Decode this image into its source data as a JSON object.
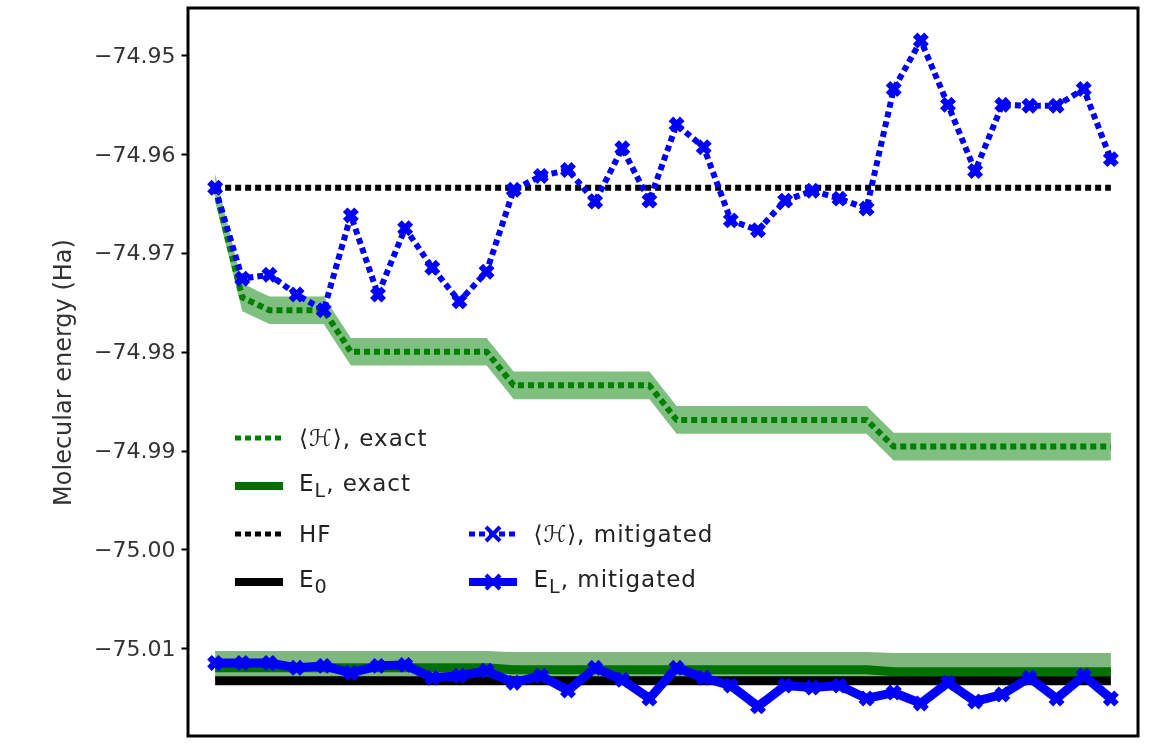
{
  "chart_data": {
    "type": "line",
    "ylabel": "Molecular energy (Ha)",
    "categories": [
      null,
      null,
      null,
      null,
      null,
      null,
      null,
      null,
      null,
      null,
      null,
      null,
      null,
      null,
      null,
      null,
      null,
      null,
      null,
      null,
      null,
      null,
      null,
      null,
      null,
      null,
      null,
      null,
      null,
      null,
      null,
      null,
      null,
      null
    ],
    "ylim": [
      -75.0189,
      -74.9452
    ],
    "yticks": [
      {
        "value": -74.95,
        "label": "−74.95"
      },
      {
        "value": -74.96,
        "label": "−74.96"
      },
      {
        "value": -74.97,
        "label": "−74.97"
      },
      {
        "value": -74.98,
        "label": "−74.98"
      },
      {
        "value": -74.99,
        "label": "−74.99"
      },
      {
        "value": -75.0,
        "label": "−75.00"
      },
      {
        "value": -75.01,
        "label": "−75.01"
      }
    ],
    "tick_labels": "y",
    "legend": "bottom left",
    "series": [
      {
        "name": "⟨ℋ⟩, exact",
        "color": "#008000",
        "line_style": "dotted",
        "marker": "none",
        "values": [
          -74.9634,
          -74.9745,
          -74.9758,
          -74.9758,
          -74.9758,
          -74.98,
          -74.98,
          -74.98,
          -74.98,
          -74.98,
          -74.98,
          -74.9834,
          -74.9834,
          -74.9834,
          -74.9834,
          -74.9834,
          -74.9834,
          -74.9869,
          -74.9869,
          -74.9869,
          -74.9869,
          -74.9869,
          -74.9869,
          -74.9869,
          -74.9869,
          -74.9896,
          -74.9896,
          -74.9896,
          -74.9896,
          -74.9896,
          -74.9896,
          -74.9896,
          -74.9896,
          -74.9896
        ],
        "lower": [
          -74.9648,
          -74.9759,
          -74.9772,
          -74.9772,
          -74.9772,
          -74.9814,
          -74.9814,
          -74.9814,
          -74.9814,
          -74.9814,
          -74.9814,
          -74.9848,
          -74.9848,
          -74.9848,
          -74.9848,
          -74.9848,
          -74.9848,
          -74.9883,
          -74.9883,
          -74.9883,
          -74.9883,
          -74.9883,
          -74.9883,
          -74.9883,
          -74.9883,
          -74.991,
          -74.991,
          -74.991,
          -74.991,
          -74.991,
          -74.991,
          -74.991,
          -74.991,
          -74.991
        ],
        "upper": [
          -74.962,
          -74.9731,
          -74.9744,
          -74.9744,
          -74.9744,
          -74.9786,
          -74.9786,
          -74.9786,
          -74.9786,
          -74.9786,
          -74.9786,
          -74.982,
          -74.982,
          -74.982,
          -74.982,
          -74.982,
          -74.982,
          -74.9855,
          -74.9855,
          -74.9855,
          -74.9855,
          -74.9855,
          -74.9855,
          -74.9855,
          -74.9855,
          -74.9882,
          -74.9882,
          -74.9882,
          -74.9882,
          -74.9882,
          -74.9882,
          -74.9882,
          -74.9882,
          -74.9882
        ]
      },
      {
        "name": "E$_{L}$, exact",
        "color": "#007000",
        "line_style": "solid",
        "marker": "none",
        "values": [
          -75.012,
          -75.012,
          -75.012,
          -75.012,
          -75.012,
          -75.012,
          -75.012,
          -75.012,
          -75.012,
          -75.012,
          -75.012,
          -75.0122,
          -75.0122,
          -75.0122,
          -75.0122,
          -75.0122,
          -75.0122,
          -75.0122,
          -75.0122,
          -75.0122,
          -75.0122,
          -75.0122,
          -75.0122,
          -75.0122,
          -75.0122,
          -75.0124,
          -75.0124,
          -75.0124,
          -75.0124,
          -75.0124,
          -75.0124,
          -75.0124,
          -75.0124,
          -75.0124
        ],
        "lower": [
          -75.0132,
          -75.0132,
          -75.0132,
          -75.0132,
          -75.0132,
          -75.0132,
          -75.0132,
          -75.0132,
          -75.0132,
          -75.0132,
          -75.0132,
          -75.0134,
          -75.0134,
          -75.0134,
          -75.0134,
          -75.0134,
          -75.0134,
          -75.0134,
          -75.0134,
          -75.0134,
          -75.0134,
          -75.0134,
          -75.0134,
          -75.0134,
          -75.0134,
          -75.0136,
          -75.0136,
          -75.0136,
          -75.0136,
          -75.0136,
          -75.0136,
          -75.0136,
          -75.0136,
          -75.0136
        ],
        "upper": [
          -75.0103,
          -75.0103,
          -75.0103,
          -75.0103,
          -75.0103,
          -75.0103,
          -75.0103,
          -75.0103,
          -75.0103,
          -75.0103,
          -75.0103,
          -75.0104,
          -75.0104,
          -75.0104,
          -75.0104,
          -75.0104,
          -75.0104,
          -75.0104,
          -75.0104,
          -75.0104,
          -75.0104,
          -75.0104,
          -75.0104,
          -75.0104,
          -75.0104,
          -75.0105,
          -75.0105,
          -75.0105,
          -75.0105,
          -75.0105,
          -75.0105,
          -75.0105,
          -75.0105,
          -75.0105
        ]
      },
      {
        "name": "HF",
        "color": "#000000",
        "line_style": "dotted",
        "marker": "none",
        "values": [
          -74.9634,
          -74.9634,
          -74.9634,
          -74.9634,
          -74.9634,
          -74.9634,
          -74.9634,
          -74.9634,
          -74.9634,
          -74.9634,
          -74.9634,
          -74.9634,
          -74.9634,
          -74.9634,
          -74.9634,
          -74.9634,
          -74.9634,
          -74.9634,
          -74.9634,
          -74.9634,
          -74.9634,
          -74.9634,
          -74.9634,
          -74.9634,
          -74.9634,
          -74.9634,
          -74.9634,
          -74.9634,
          -74.9634,
          -74.9634,
          -74.9634,
          -74.9634,
          -74.9634,
          -74.9634
        ]
      },
      {
        "name": "E$_{0}$",
        "color": "#000000",
        "line_style": "solid",
        "marker": "none",
        "values": [
          -75.0133,
          -75.0133,
          -75.0133,
          -75.0133,
          -75.0133,
          -75.0133,
          -75.0133,
          -75.0133,
          -75.0133,
          -75.0133,
          -75.0133,
          -75.0133,
          -75.0133,
          -75.0133,
          -75.0133,
          -75.0133,
          -75.0133,
          -75.0133,
          -75.0133,
          -75.0133,
          -75.0133,
          -75.0133,
          -75.0133,
          -75.0133,
          -75.0133,
          -75.0133,
          -75.0133,
          -75.0133,
          -75.0133,
          -75.0133,
          -75.0133,
          -75.0133,
          -75.0133,
          -75.0133
        ]
      },
      {
        "name": "⟨ℋ⟩, mitigated",
        "color": "#0000ff",
        "line_style": "dotted",
        "marker": "cross",
        "values": [
          -74.9634,
          -74.9726,
          -74.9722,
          -74.9742,
          -74.9758,
          -74.9662,
          -74.9742,
          -74.9675,
          -74.9715,
          -74.9749,
          -74.9719,
          -74.9636,
          -74.9622,
          -74.9616,
          -74.9648,
          -74.9594,
          -74.9647,
          -74.957,
          -74.9593,
          -74.9667,
          -74.9677,
          -74.9647,
          -74.9637,
          -74.9645,
          -74.9655,
          -74.9534,
          -74.9485,
          -74.955,
          -74.9617,
          -74.955,
          -74.9551,
          -74.9551,
          -74.9534,
          -74.9605
        ]
      },
      {
        "name": "E$_{L}$, mitigated",
        "color": "#0000ff",
        "line_style": "solid",
        "marker": "cross",
        "values": [
          -75.0115,
          -75.0115,
          -75.0115,
          -75.012,
          -75.0118,
          -75.0125,
          -75.0118,
          -75.0117,
          -75.013,
          -75.0128,
          -75.0123,
          -75.0135,
          -75.0128,
          -75.0143,
          -75.012,
          -75.0132,
          -75.0151,
          -75.012,
          -75.013,
          -75.0138,
          -75.0159,
          -75.0138,
          -75.014,
          -75.0138,
          -75.0151,
          -75.0145,
          -75.0156,
          -75.0135,
          -75.0154,
          -75.0147,
          -75.013,
          -75.0151,
          -75.0128,
          -75.0151
        ]
      }
    ]
  }
}
